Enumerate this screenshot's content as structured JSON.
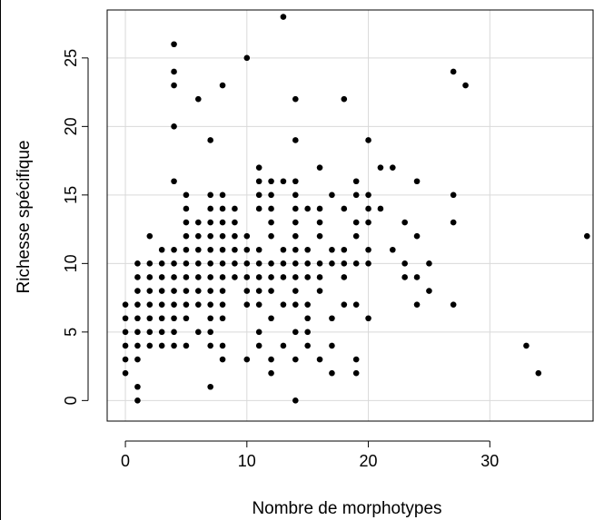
{
  "chart_data": {
    "type": "scatter",
    "xlabel": "Nombre de morphotypes",
    "ylabel": "Richesse spécifique",
    "xlim": [
      -1.5,
      38.5
    ],
    "ylim": [
      -1.5,
      28.5
    ],
    "x_ticks": [
      0,
      10,
      20,
      30
    ],
    "y_ticks": [
      0,
      5,
      10,
      15,
      20,
      25
    ],
    "grid": true,
    "points": [
      [
        13,
        28
      ],
      [
        4,
        26
      ],
      [
        10,
        25
      ],
      [
        4,
        24
      ],
      [
        27,
        24
      ],
      [
        4,
        23
      ],
      [
        8,
        23
      ],
      [
        28,
        23
      ],
      [
        6,
        22
      ],
      [
        14,
        22
      ],
      [
        18,
        22
      ],
      [
        4,
        20
      ],
      [
        7,
        19
      ],
      [
        14,
        19
      ],
      [
        20,
        19
      ],
      [
        16,
        17
      ],
      [
        21,
        17
      ],
      [
        22,
        17
      ],
      [
        11,
        17
      ],
      [
        4,
        16
      ],
      [
        11,
        16
      ],
      [
        12,
        16
      ],
      [
        13,
        16
      ],
      [
        14,
        16
      ],
      [
        19,
        16
      ],
      [
        24,
        16
      ],
      [
        5,
        15
      ],
      [
        7,
        15
      ],
      [
        8,
        15
      ],
      [
        11,
        15
      ],
      [
        12,
        15
      ],
      [
        14,
        15
      ],
      [
        17,
        15
      ],
      [
        19,
        15
      ],
      [
        20,
        15
      ],
      [
        27,
        15
      ],
      [
        5,
        14
      ],
      [
        7,
        14
      ],
      [
        8,
        14
      ],
      [
        9,
        14
      ],
      [
        11,
        14
      ],
      [
        12,
        14
      ],
      [
        14,
        14
      ],
      [
        15,
        14
      ],
      [
        16,
        14
      ],
      [
        18,
        14
      ],
      [
        20,
        14
      ],
      [
        21,
        14
      ],
      [
        5,
        13
      ],
      [
        6,
        13
      ],
      [
        7,
        13
      ],
      [
        8,
        13
      ],
      [
        9,
        13
      ],
      [
        12,
        13
      ],
      [
        14,
        13
      ],
      [
        16,
        13
      ],
      [
        19,
        13
      ],
      [
        20,
        13
      ],
      [
        23,
        13
      ],
      [
        27,
        13
      ],
      [
        2,
        12
      ],
      [
        5,
        12
      ],
      [
        6,
        12
      ],
      [
        7,
        12
      ],
      [
        8,
        12
      ],
      [
        9,
        12
      ],
      [
        10,
        12
      ],
      [
        12,
        12
      ],
      [
        14,
        12
      ],
      [
        16,
        12
      ],
      [
        19,
        12
      ],
      [
        24,
        12
      ],
      [
        38,
        12
      ],
      [
        3,
        11
      ],
      [
        4,
        11
      ],
      [
        5,
        11
      ],
      [
        6,
        11
      ],
      [
        7,
        11
      ],
      [
        8,
        11
      ],
      [
        9,
        11
      ],
      [
        10,
        11
      ],
      [
        11,
        11
      ],
      [
        13,
        11
      ],
      [
        14,
        11
      ],
      [
        15,
        11
      ],
      [
        17,
        11
      ],
      [
        18,
        11
      ],
      [
        20,
        11
      ],
      [
        22,
        11
      ],
      [
        1,
        10
      ],
      [
        2,
        10
      ],
      [
        3,
        10
      ],
      [
        4,
        10
      ],
      [
        5,
        10
      ],
      [
        6,
        10
      ],
      [
        7,
        10
      ],
      [
        8,
        10
      ],
      [
        9,
        10
      ],
      [
        10,
        10
      ],
      [
        11,
        10
      ],
      [
        12,
        10
      ],
      [
        13,
        10
      ],
      [
        14,
        10
      ],
      [
        15,
        10
      ],
      [
        16,
        10
      ],
      [
        17,
        10
      ],
      [
        18,
        10
      ],
      [
        19,
        10
      ],
      [
        20,
        10
      ],
      [
        23,
        10
      ],
      [
        25,
        10
      ],
      [
        1,
        9
      ],
      [
        2,
        9
      ],
      [
        3,
        9
      ],
      [
        4,
        9
      ],
      [
        5,
        9
      ],
      [
        6,
        9
      ],
      [
        7,
        9
      ],
      [
        8,
        9
      ],
      [
        9,
        9
      ],
      [
        10,
        9
      ],
      [
        11,
        9
      ],
      [
        12,
        9
      ],
      [
        13,
        9
      ],
      [
        14,
        9
      ],
      [
        15,
        9
      ],
      [
        16,
        9
      ],
      [
        18,
        9
      ],
      [
        23,
        9
      ],
      [
        24,
        9
      ],
      [
        1,
        8
      ],
      [
        2,
        8
      ],
      [
        3,
        8
      ],
      [
        4,
        8
      ],
      [
        5,
        8
      ],
      [
        6,
        8
      ],
      [
        7,
        8
      ],
      [
        8,
        8
      ],
      [
        10,
        8
      ],
      [
        11,
        8
      ],
      [
        12,
        8
      ],
      [
        14,
        8
      ],
      [
        16,
        8
      ],
      [
        25,
        8
      ],
      [
        0,
        7
      ],
      [
        1,
        7
      ],
      [
        2,
        7
      ],
      [
        3,
        7
      ],
      [
        4,
        7
      ],
      [
        5,
        7
      ],
      [
        6,
        7
      ],
      [
        7,
        7
      ],
      [
        8,
        7
      ],
      [
        10,
        7
      ],
      [
        11,
        7
      ],
      [
        13,
        7
      ],
      [
        14,
        7
      ],
      [
        15,
        7
      ],
      [
        18,
        7
      ],
      [
        19,
        7
      ],
      [
        24,
        7
      ],
      [
        27,
        7
      ],
      [
        0,
        6
      ],
      [
        1,
        6
      ],
      [
        2,
        6
      ],
      [
        3,
        6
      ],
      [
        4,
        6
      ],
      [
        5,
        6
      ],
      [
        7,
        6
      ],
      [
        8,
        6
      ],
      [
        12,
        6
      ],
      [
        15,
        6
      ],
      [
        17,
        6
      ],
      [
        20,
        6
      ],
      [
        0,
        5
      ],
      [
        1,
        5
      ],
      [
        2,
        5
      ],
      [
        3,
        5
      ],
      [
        4,
        5
      ],
      [
        6,
        5
      ],
      [
        7,
        5
      ],
      [
        11,
        5
      ],
      [
        14,
        5
      ],
      [
        15,
        5
      ],
      [
        0,
        4
      ],
      [
        1,
        4
      ],
      [
        2,
        4
      ],
      [
        3,
        4
      ],
      [
        4,
        4
      ],
      [
        5,
        4
      ],
      [
        7,
        4
      ],
      [
        8,
        4
      ],
      [
        11,
        4
      ],
      [
        13,
        4
      ],
      [
        15,
        4
      ],
      [
        17,
        4
      ],
      [
        33,
        4
      ],
      [
        0,
        3
      ],
      [
        1,
        3
      ],
      [
        8,
        3
      ],
      [
        10,
        3
      ],
      [
        12,
        3
      ],
      [
        14,
        3
      ],
      [
        16,
        3
      ],
      [
        19,
        3
      ],
      [
        0,
        2
      ],
      [
        12,
        2
      ],
      [
        17,
        2
      ],
      [
        19,
        2
      ],
      [
        34,
        2
      ],
      [
        1,
        1
      ],
      [
        7,
        1
      ],
      [
        1,
        0
      ],
      [
        14,
        0
      ]
    ]
  }
}
